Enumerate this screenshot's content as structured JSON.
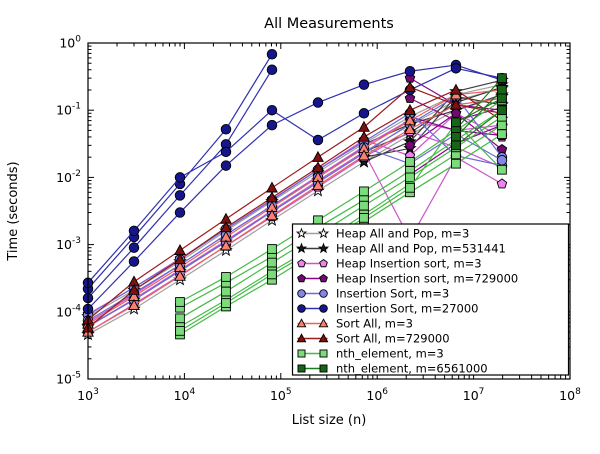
{
  "chart_data": {
    "type": "line",
    "title": "All Measurements",
    "xlabel": "List size (n)",
    "ylabel": "Time (seconds)",
    "x_scale": "log",
    "y_scale": "log",
    "xlim": [
      1000,
      100000000
    ],
    "ylim": [
      1e-05,
      1.0
    ],
    "x_tick_exponents": [
      3,
      4,
      5,
      6,
      7,
      8
    ],
    "y_tick_exponents": [
      0,
      -1,
      -2,
      -3,
      -4,
      -5
    ],
    "grid": false,
    "legend_position": "lower right",
    "series": [
      {
        "name": "Heap All and Pop, m=3",
        "marker": "star",
        "fill": "#ffffff",
        "line_color": "#a0a0a0",
        "x": [
          1000,
          3000,
          9000,
          27000,
          81000,
          243000,
          729000,
          2187000,
          6561000,
          19683000
        ],
        "runs": [
          [
            6e-05,
            0.00015,
            0.0004,
            0.0011,
            0.0032,
            0.009,
            0.024,
            0.06,
            0.14,
            0.21
          ],
          [
            8.5e-05,
            0.00021,
            0.00056,
            0.0016,
            0.0044,
            0.012,
            0.032,
            0.08,
            0.17,
            0.24
          ],
          [
            4.6e-05,
            0.00011,
            0.0003,
            0.00082,
            0.0023,
            0.0063,
            0.017,
            0.043,
            0.1,
            0.16
          ]
        ]
      },
      {
        "name": "Heap All and Pop, m=531441",
        "marker": "star",
        "fill": "#1a1a1a",
        "line_color": "#3c3c3c",
        "x": [
          729000,
          2187000,
          6561000,
          19683000
        ],
        "runs": [
          [
            0.024,
            0.046,
            0.13,
            0.22
          ],
          [
            0.017,
            0.034,
            0.19,
            0.28
          ],
          [
            0.031,
            0.062,
            0.1,
            0.17
          ],
          [
            0.02,
            0.027,
            0.16,
            0.12
          ]
        ]
      },
      {
        "name": "Heap Insertion sort, m=3",
        "marker": "pentagon",
        "fill": "#ee82ee",
        "line_color": "#cc55cc",
        "x": [
          1000,
          3000,
          9000,
          27000,
          81000,
          243000,
          729000,
          2187000,
          6561000,
          19683000
        ],
        "runs": [
          [
            7e-05,
            0.00018,
            0.0005,
            0.0014,
            0.0038,
            0.0105,
            0.029,
            0.072,
            0.05,
            0.06
          ],
          [
            5e-05,
            0.00013,
            0.00035,
            0.00095,
            0.0026,
            0.0072,
            0.02,
            0.048,
            0.028,
            0.014
          ],
          [
            9.2e-05,
            0.00023,
            0.00062,
            0.0017,
            0.0047,
            0.013,
            0.036,
            0.021,
            0.09,
            0.04
          ],
          [
            6e-05,
            0.000155,
            0.00042,
            0.00115,
            0.0032,
            0.0088,
            0.024,
            0.0012,
            0.02,
            0.008
          ]
        ]
      },
      {
        "name": "Heap Insertion sort, m=729000",
        "marker": "pentagon",
        "fill": "#730873",
        "line_color": "#8b008b",
        "x": [
          2187000,
          6561000,
          19683000
        ],
        "runs": [
          [
            0.3,
            0.12,
            0.1
          ],
          [
            0.15,
            0.07,
            0.11
          ],
          [
            0.08,
            0.05,
            0.042
          ],
          [
            0.03,
            0.09,
            0.026
          ],
          [
            0.011,
            0.032,
            0.06
          ]
        ]
      },
      {
        "name": "Insertion Sort, m=3",
        "marker": "circle",
        "fill": "#8585e8",
        "line_color": "#6a6ad8",
        "x": [
          1000,
          3000,
          9000,
          27000,
          81000,
          243000,
          729000,
          2187000,
          6561000,
          19683000
        ],
        "runs": [
          [
            6.2e-05,
            0.00015,
            0.00041,
            0.0011,
            0.0031,
            0.0084,
            0.023,
            0.062,
            0.16,
            0.02
          ],
          [
            9e-05,
            0.00023,
            0.0006,
            0.0017,
            0.0046,
            0.013,
            0.034,
            0.09,
            0.021,
            0.015
          ],
          [
            7.4e-05,
            0.00019,
            0.0005,
            0.0014,
            0.0038,
            0.01,
            0.028,
            0.016,
            0.044,
            0.018
          ]
        ]
      },
      {
        "name": "Insertion Sort, m=27000",
        "marker": "circle",
        "fill": "#16168c",
        "line_color": "#3030b0",
        "x": [
          1000,
          3000,
          9000,
          27000,
          81000,
          243000,
          729000,
          2187000,
          6561000,
          19683000
        ],
        "runs": [
          [
            0.00022,
            0.0013,
            0.008,
            0.052,
            0.68
          ],
          [
            0.00016,
            0.0009,
            0.0054,
            0.031,
            0.4
          ],
          [
            0.00011,
            0.00056,
            0.003,
            0.015,
            0.06,
            0.13,
            0.24,
            0.38,
            0.47,
            0.28
          ],
          [
            0.00027,
            0.0016,
            0.01,
            0.024,
            0.1,
            0.036,
            0.09,
            0.2,
            0.42,
            0.3
          ]
        ]
      },
      {
        "name": "Sort All, m=3",
        "marker": "triangle",
        "fill": "#fa8072",
        "line_color": "#e8645a",
        "x": [
          1000,
          3000,
          9000,
          27000,
          81000,
          243000,
          729000,
          2187000,
          6561000,
          19683000
        ],
        "runs": [
          [
            6.6e-05,
            0.00017,
            0.00046,
            0.0013,
            0.0036,
            0.01,
            0.027,
            0.07,
            0.17,
            0.2
          ],
          [
            5e-05,
            0.000125,
            0.00034,
            0.00096,
            0.0027,
            0.0076,
            0.021,
            0.052,
            0.12,
            0.15
          ]
        ]
      },
      {
        "name": "Sort All, m=729000",
        "marker": "triangle",
        "fill": "#7e1010",
        "line_color": "#9b1c1c",
        "x": [
          1000,
          3000,
          9000,
          27000,
          81000,
          243000,
          729000,
          2187000,
          6561000,
          19683000
        ],
        "runs": [
          [
            7.6e-05,
            0.00028,
            0.00082,
            0.0024,
            0.007,
            0.02,
            0.056,
            0.22,
            0.12,
            0.09
          ],
          [
            5.8e-05,
            0.00021,
            0.0006,
            0.0018,
            0.005,
            0.014,
            0.04,
            0.1,
            0.2,
            0.07
          ]
        ]
      },
      {
        "name": "nth_element, m=3",
        "marker": "square",
        "fill": "#7cdc7c",
        "line_color": "#44bb44",
        "x": [
          9000,
          27000,
          81000,
          243000,
          729000,
          2187000,
          6561000,
          19683000
        ],
        "runs": [
          [
            0.000115,
            0.00027,
            0.00066,
            0.0018,
            0.0046,
            0.0125,
            0.036,
            0.1
          ],
          [
            6e-05,
            0.00015,
            0.0004,
            0.001,
            0.0028,
            0.008,
            0.022,
            0.06
          ],
          [
            4.6e-05,
            0.00012,
            0.0003,
            0.0008,
            0.0022,
            0.006,
            0.016,
            0.044
          ],
          [
            8e-05,
            0.0002,
            0.00054,
            0.0014,
            0.0038,
            0.01,
            0.028,
            0.08
          ],
          [
            0.00014,
            0.00033,
            0.00086,
            0.0023,
            0.0062,
            0.017,
            0.05,
            0.14
          ],
          [
            5.2e-05,
            0.000135,
            0.00036,
            0.0009,
            0.0025,
            0.007,
            0.065,
            0.013
          ]
        ]
      },
      {
        "name": "nth_element, m=6561000",
        "marker": "square",
        "fill": "#176617",
        "line_color": "#1e7a1e",
        "x": [
          6561000,
          19683000
        ],
        "runs": [
          [
            0.052,
            0.3
          ],
          [
            0.04,
            0.2
          ],
          [
            0.066,
            0.15
          ],
          [
            0.03,
            0.1
          ]
        ]
      }
    ]
  }
}
